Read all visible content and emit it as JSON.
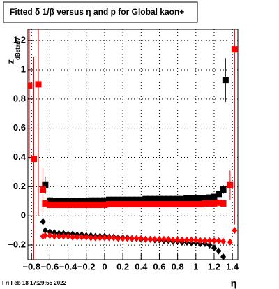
{
  "chart_data": {
    "type": "scatter",
    "title": "Fitted δ 1/β versus η and p for Global kaon+",
    "y_label": "z",
    "y_label_sub": "dBetanv",
    "x_label": "η",
    "footer": "Fri Feb 18 17:29:55 2022",
    "xlim": [
      -0.84,
      1.46
    ],
    "ylim": [
      -0.3,
      1.277
    ],
    "xticks": [
      {
        "value": -0.8,
        "label": "−0.8"
      },
      {
        "value": -0.6,
        "label": "−0.6"
      },
      {
        "value": -0.4,
        "label": "−0.4"
      },
      {
        "value": -0.2,
        "label": "−0.2"
      },
      0,
      0.2,
      0.4,
      0.6,
      0.8,
      1,
      1.2,
      1.4
    ],
    "yticks": [
      {
        "value": -0.2,
        "label": "−0.2"
      },
      0,
      0.2,
      0.4,
      0.6,
      0.8,
      1,
      1.2
    ],
    "grid": true,
    "series": [
      {
        "color": "#000000",
        "marker": "square",
        "x": [
          -0.65,
          -0.6,
          -0.55,
          -0.5,
          -0.45,
          -0.4,
          -0.35,
          -0.3,
          -0.25,
          -0.2,
          -0.15,
          -0.1,
          -0.05,
          0,
          0.05,
          0.1,
          0.15,
          0.2,
          0.25,
          0.3,
          0.35,
          0.4,
          0.45,
          0.5,
          0.55,
          0.6,
          0.65,
          0.7,
          0.75,
          0.8,
          0.85,
          0.9,
          0.95,
          1,
          1.05,
          1.1,
          1.15,
          1.2,
          1.25,
          1.3,
          1.325
        ],
        "values": [
          0.21,
          0.105,
          0.1,
          0.1,
          0.1,
          0.1,
          0.1,
          0.1,
          0.1,
          0.1,
          0.105,
          0.105,
          0.105,
          0.105,
          0.11,
          0.11,
          0.11,
          0.11,
          0.11,
          0.11,
          0.11,
          0.11,
          0.115,
          0.115,
          0.115,
          0.115,
          0.115,
          0.115,
          0.115,
          0.115,
          0.115,
          0.12,
          0.12,
          0.12,
          0.12,
          0.12,
          0.125,
          0.13,
          0.15,
          0.18,
          0.93
        ],
        "errors": [
          0.06,
          null,
          null,
          null,
          null,
          null,
          null,
          null,
          null,
          null,
          null,
          null,
          null,
          null,
          null,
          null,
          null,
          null,
          null,
          null,
          null,
          null,
          null,
          null,
          null,
          null,
          null,
          null,
          null,
          null,
          null,
          null,
          null,
          null,
          null,
          null,
          null,
          null,
          null,
          0.03,
          0.15
        ]
      },
      {
        "color": "#ff0000",
        "marker": "square",
        "x": [
          -0.825,
          -0.775,
          -0.725,
          -0.675,
          -0.65,
          -0.6,
          -0.55,
          -0.5,
          -0.45,
          -0.4,
          -0.35,
          -0.3,
          -0.25,
          -0.2,
          -0.15,
          -0.1,
          -0.05,
          0,
          0.05,
          0.1,
          0.15,
          0.2,
          0.25,
          0.3,
          0.35,
          0.4,
          0.45,
          0.5,
          0.55,
          0.6,
          0.65,
          0.7,
          0.75,
          0.8,
          0.85,
          0.9,
          0.95,
          1,
          1.05,
          1.1,
          1.15,
          1.2,
          1.25,
          1.3,
          1.375,
          1.425
        ],
        "values": [
          0.89,
          0.39,
          0.9,
          0.18,
          0.085,
          0.075,
          0.075,
          0.075,
          0.075,
          0.075,
          0.075,
          0.075,
          0.075,
          0.075,
          0.075,
          0.075,
          0.075,
          0.075,
          0.08,
          0.08,
          0.08,
          0.08,
          0.08,
          0.08,
          0.08,
          0.08,
          0.08,
          0.08,
          0.08,
          0.08,
          0.08,
          0.08,
          0.08,
          0.08,
          0.08,
          0.08,
          0.08,
          0.08,
          0.08,
          0.085,
          0.085,
          0.085,
          0.09,
          0.085,
          0.21,
          1.14
        ],
        "errors": [
          0.5,
          0.7,
          0.9,
          0.15,
          null,
          null,
          null,
          null,
          null,
          null,
          null,
          null,
          null,
          null,
          null,
          null,
          null,
          null,
          null,
          null,
          null,
          null,
          null,
          null,
          null,
          null,
          null,
          null,
          null,
          null,
          null,
          null,
          null,
          null,
          null,
          null,
          null,
          null,
          null,
          null,
          null,
          null,
          null,
          null,
          0.1,
          1.2
        ]
      },
      {
        "color": "#000000",
        "marker": "diamond",
        "x": [
          -0.675,
          -0.65,
          -0.6,
          -0.55,
          -0.5,
          -0.45,
          -0.4,
          -0.35,
          -0.3,
          -0.25,
          -0.2,
          -0.15,
          -0.1,
          -0.05,
          0,
          0.05,
          0.1,
          0.15,
          0.2,
          0.25,
          0.3,
          0.35,
          0.4,
          0.45,
          0.5,
          0.55,
          0.6,
          0.65,
          0.7,
          0.75,
          0.8,
          0.85,
          0.9,
          0.95,
          1,
          1.05,
          1.1,
          1.15,
          1.2,
          1.25,
          1.3
        ],
        "values": [
          -0.04,
          -0.1,
          -0.11,
          -0.115,
          -0.12,
          -0.12,
          -0.125,
          -0.125,
          -0.13,
          -0.13,
          -0.135,
          -0.135,
          -0.14,
          -0.14,
          -0.14,
          -0.145,
          -0.145,
          -0.15,
          -0.15,
          -0.15,
          -0.155,
          -0.155,
          -0.16,
          -0.16,
          -0.16,
          -0.165,
          -0.165,
          -0.17,
          -0.17,
          -0.175,
          -0.175,
          -0.18,
          -0.18,
          -0.185,
          -0.185,
          -0.19,
          -0.19,
          -0.2,
          -0.22,
          -0.24,
          -0.28
        ]
      },
      {
        "color": "#ff0000",
        "marker": "diamond",
        "x": [
          -0.675,
          -0.65,
          -0.6,
          -0.55,
          -0.5,
          -0.45,
          -0.4,
          -0.35,
          -0.3,
          -0.25,
          -0.2,
          -0.15,
          -0.1,
          -0.05,
          0,
          0.05,
          0.1,
          0.15,
          0.2,
          0.25,
          0.3,
          0.35,
          0.4,
          0.45,
          0.5,
          0.55,
          0.6,
          0.65,
          0.7,
          0.75,
          0.8,
          0.85,
          0.9,
          0.95,
          1,
          1.05,
          1.1,
          1.15,
          1.2,
          1.25,
          1.3,
          1.375,
          1.425
        ],
        "values": [
          -0.14,
          -0.135,
          -0.135,
          -0.14,
          -0.14,
          -0.14,
          -0.14,
          -0.145,
          -0.145,
          -0.145,
          -0.145,
          -0.15,
          -0.15,
          -0.15,
          -0.15,
          -0.15,
          -0.15,
          -0.155,
          -0.155,
          -0.155,
          -0.155,
          -0.155,
          -0.155,
          -0.16,
          -0.16,
          -0.16,
          -0.16,
          -0.16,
          -0.16,
          -0.165,
          -0.165,
          -0.165,
          -0.165,
          -0.165,
          -0.165,
          -0.17,
          -0.17,
          -0.17,
          -0.17,
          -0.17,
          -0.175,
          -0.18,
          -0.1
        ]
      }
    ]
  }
}
